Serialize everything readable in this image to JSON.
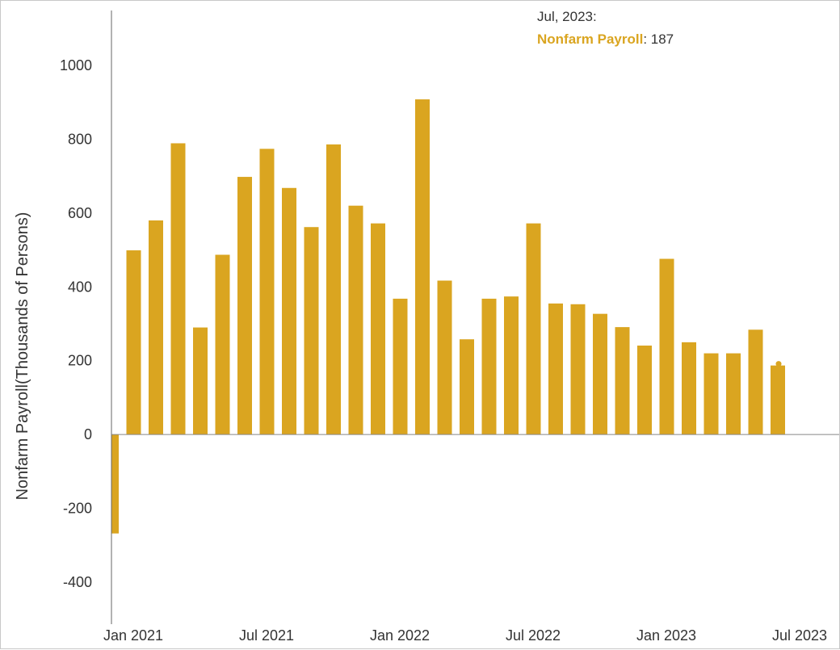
{
  "chart_data": {
    "type": "bar",
    "series": [
      {
        "name": "Nonfarm Payroll",
        "color": "#DAA520",
        "x": [
          "2021-01",
          "2021-02",
          "2021-03",
          "2021-04",
          "2021-05",
          "2021-06",
          "2021-07",
          "2021-08",
          "2021-09",
          "2021-10",
          "2021-11",
          "2021-12",
          "2022-01",
          "2022-02",
          "2022-03",
          "2022-04",
          "2022-05",
          "2022-06",
          "2022-07",
          "2022-08",
          "2022-09",
          "2022-10",
          "2022-11",
          "2022-12",
          "2023-01",
          "2023-02",
          "2023-03",
          "2023-04",
          "2023-05",
          "2023-06",
          "2023-07"
        ],
        "values": [
          -268,
          499,
          580,
          789,
          290,
          487,
          698,
          774,
          668,
          562,
          786,
          620,
          572,
          368,
          908,
          417,
          258,
          368,
          374,
          572,
          355,
          353,
          327,
          291,
          241,
          476,
          250,
          220,
          220,
          284,
          187
        ]
      }
    ],
    "ylabel": "Nonfarm Payroll(Thousands of Persons)",
    "xlabel": "",
    "ylim": [
      -440,
      1150
    ],
    "yticks": [
      -400,
      -200,
      0,
      200,
      400,
      600,
      800,
      1000
    ],
    "xtick_labels": [
      {
        "label": "Jan 2021",
        "index": 0
      },
      {
        "label": "Jul 2021",
        "index": 6
      },
      {
        "label": "Jan 2022",
        "index": 12
      },
      {
        "label": "Jul 2022",
        "index": 18
      },
      {
        "label": "Jan 2023",
        "index": 24
      },
      {
        "label": "Jul 2023",
        "index": 30
      }
    ],
    "grid": false,
    "tooltip": {
      "title": "Jul, 2023:",
      "series_label": "Nonfarm Payroll",
      "separator": ": ",
      "value": "187",
      "index": 30
    }
  }
}
